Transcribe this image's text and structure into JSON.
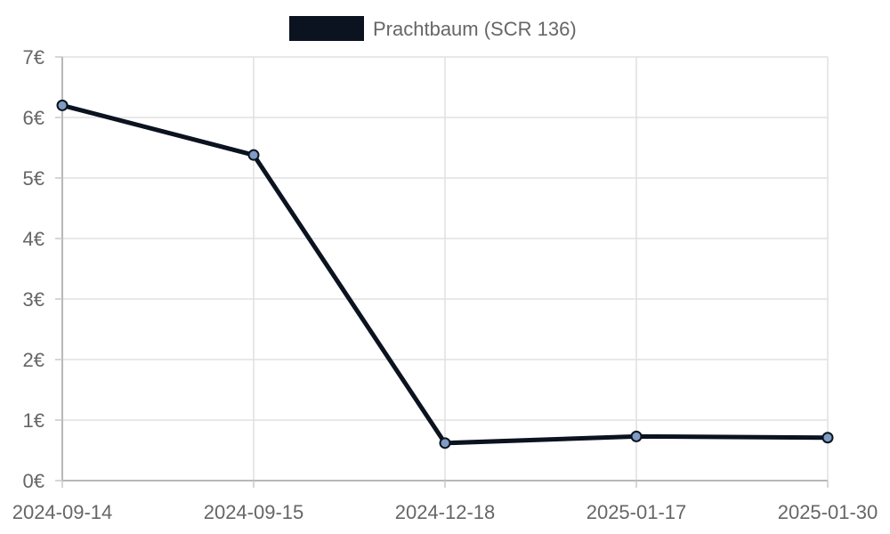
{
  "chart_data": {
    "type": "line",
    "x": [
      "2024-09-14",
      "2024-09-15",
      "2024-12-18",
      "2025-01-17",
      "2025-01-30"
    ],
    "series": [
      {
        "name": "Prachtbaum (SCR 136)",
        "values": [
          6.2,
          5.38,
          0.62,
          0.73,
          0.71
        ],
        "color": "#0b1220",
        "point_color": "#7f9cc2"
      }
    ],
    "y_ticks": [
      "0€",
      "1€",
      "2€",
      "3€",
      "4€",
      "5€",
      "6€",
      "7€"
    ],
    "ylim": [
      0,
      7
    ],
    "grid": true,
    "legend_position": "top-center",
    "title": "",
    "xlabel": "",
    "ylabel": ""
  }
}
